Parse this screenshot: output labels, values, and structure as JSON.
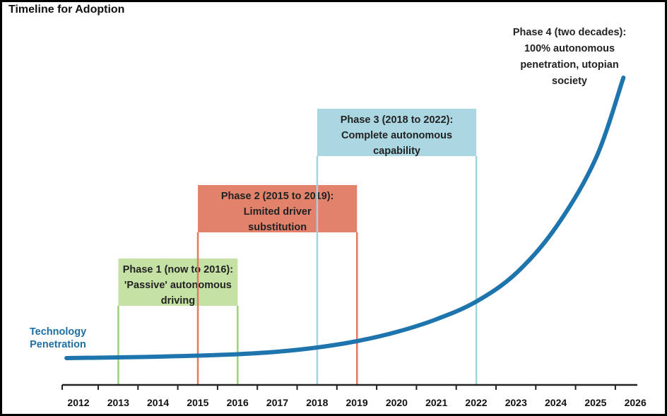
{
  "title": "Timeline for Adoption",
  "colors": {
    "curve": "#1e75ad",
    "axis": "#222222",
    "phase1_fill": "#c5e2a4",
    "phase1_stroke": "#9cd07a",
    "phase2_fill": "#e2826b",
    "phase2_stroke": "#e07a63",
    "phase3_fill": "#abd7e3",
    "phase3_stroke": "#a2d2de"
  },
  "chart_data": {
    "type": "line",
    "years": [
      "2012",
      "2013",
      "2014",
      "2015",
      "2016",
      "2017",
      "2018",
      "2019",
      "2020",
      "2021",
      "2022",
      "2023",
      "2024",
      "2025",
      "2026"
    ],
    "series_label": [
      "Technology",
      "Penetration"
    ],
    "phases": [
      {
        "lines": [
          "Phase 1 (now to 2016):",
          "'Passive' autonomous",
          "driving"
        ],
        "start": 2013,
        "end": 2016,
        "colorKey": "phase1"
      },
      {
        "lines": [
          "Phase 2 (2015 to 2019):",
          "Limited driver",
          "substitution"
        ],
        "start": 2015,
        "end": 2019,
        "colorKey": "phase2"
      },
      {
        "lines": [
          "Phase 3 (2018 to 2022):",
          "Complete autonomous",
          "capability"
        ],
        "start": 2018,
        "end": 2022,
        "colorKey": "phase3"
      }
    ],
    "phase4": {
      "lines": [
        "Phase 4 (two decades):",
        "100% autonomous",
        "penetration, utopian",
        "society"
      ]
    },
    "curve": [
      [
        2011.7,
        3
      ],
      [
        2013,
        4
      ],
      [
        2014,
        5
      ],
      [
        2015,
        6.5
      ],
      [
        2016,
        8.5
      ],
      [
        2017,
        12
      ],
      [
        2018,
        18
      ],
      [
        2019,
        27
      ],
      [
        2020,
        40
      ],
      [
        2021,
        58
      ],
      [
        2022,
        83
      ],
      [
        2023,
        123
      ],
      [
        2024,
        188
      ],
      [
        2025,
        285
      ],
      [
        2025.7,
        400
      ]
    ]
  }
}
